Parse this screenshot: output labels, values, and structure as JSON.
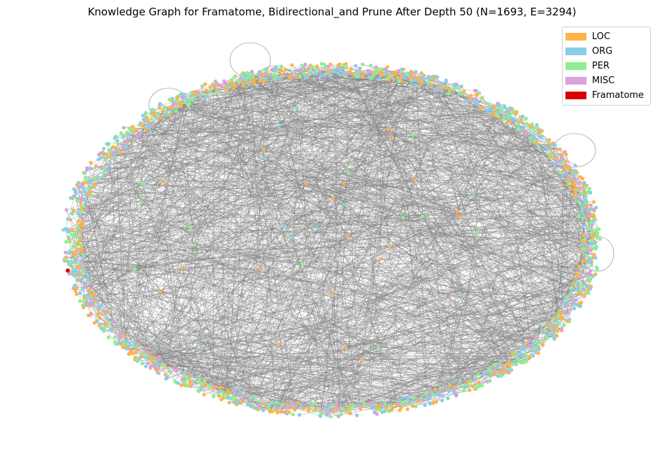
{
  "title": "Knowledge Graph for Framatome, Bidirectional_and Prune After Depth 50 (N=1693, E=3294)",
  "legend": [
    {
      "label": "LOC",
      "color": "#ffb347"
    },
    {
      "label": "ORG",
      "color": "#87ceeb"
    },
    {
      "label": "PER",
      "color": "#90ee90"
    },
    {
      "label": "MISC",
      "color": "#dda0dd"
    },
    {
      "label": "Framatome",
      "color": "#d80000"
    }
  ],
  "edge_color": "#808080",
  "graph": {
    "node_count": 1693,
    "edge_count": 3294
  }
}
